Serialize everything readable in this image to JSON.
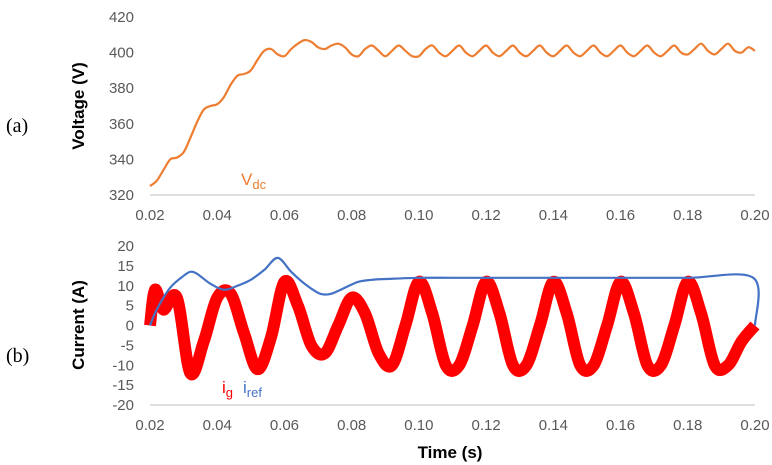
{
  "chart_data": [
    {
      "type": "line",
      "panel_label": "(a)",
      "title": "",
      "xlabel": "",
      "ylabel": "Voltage (V)",
      "xlim": [
        0.02,
        0.2
      ],
      "ylim": [
        320,
        420
      ],
      "xticks": [
        "0.02",
        "0.04",
        "0.06",
        "0.08",
        "0.10",
        "0.12",
        "0.14",
        "0.16",
        "0.18",
        "0.20"
      ],
      "yticks": [
        "320",
        "340",
        "360",
        "380",
        "400",
        "420"
      ],
      "grid": false,
      "series": [
        {
          "name": "Vdc",
          "label_main": "V",
          "label_sub": "dc",
          "color": "#ED7D31",
          "x": [
            0.02,
            0.022,
            0.024,
            0.026,
            0.028,
            0.03,
            0.032,
            0.034,
            0.036,
            0.038,
            0.04,
            0.042,
            0.044,
            0.046,
            0.048,
            0.05,
            0.052,
            0.054,
            0.056,
            0.058,
            0.06,
            0.062,
            0.064,
            0.066,
            0.068,
            0.07,
            0.072,
            0.074,
            0.076,
            0.078,
            0.08,
            0.082,
            0.084,
            0.086,
            0.088,
            0.09,
            0.092,
            0.094,
            0.096,
            0.098,
            0.1,
            0.102,
            0.104,
            0.106,
            0.108,
            0.11,
            0.112,
            0.114,
            0.116,
            0.118,
            0.12,
            0.122,
            0.124,
            0.126,
            0.128,
            0.13,
            0.132,
            0.134,
            0.136,
            0.138,
            0.14,
            0.142,
            0.144,
            0.146,
            0.148,
            0.15,
            0.152,
            0.154,
            0.156,
            0.158,
            0.16,
            0.162,
            0.164,
            0.166,
            0.168,
            0.17,
            0.172,
            0.174,
            0.176,
            0.178,
            0.18,
            0.182,
            0.184,
            0.186,
            0.188,
            0.19,
            0.192,
            0.194,
            0.196,
            0.198,
            0.2
          ],
          "values": [
            325,
            328,
            334,
            340,
            341,
            344,
            352,
            361,
            368,
            370,
            371,
            375,
            382,
            387,
            388,
            390,
            396,
            401,
            402,
            399,
            398,
            402,
            405,
            407,
            406,
            403,
            402,
            404,
            405,
            403,
            399,
            398,
            402,
            404,
            401,
            398,
            401,
            404,
            401,
            398,
            398,
            402,
            404,
            400,
            398,
            401,
            404,
            400,
            398,
            401,
            404,
            400,
            398,
            401,
            404,
            400,
            398,
            401,
            404,
            400,
            398,
            401,
            404,
            400,
            398,
            401,
            404,
            400,
            398,
            401,
            404,
            400,
            398,
            401,
            404,
            400,
            398,
            401,
            404,
            400,
            399,
            402,
            405,
            401,
            399,
            402,
            405,
            401,
            400,
            403,
            401
          ]
        }
      ]
    },
    {
      "type": "line",
      "panel_label": "(b)",
      "title": "",
      "xlabel": "Time (s)",
      "ylabel": "Current (A)",
      "xlim": [
        0.02,
        0.2
      ],
      "ylim": [
        -20,
        20
      ],
      "xticks": [
        "0.02",
        "0.04",
        "0.06",
        "0.08",
        "0.10",
        "0.12",
        "0.14",
        "0.16",
        "0.18",
        "0.20"
      ],
      "yticks": [
        "-20",
        "-15",
        "-10",
        "-5",
        "0",
        "5",
        "10",
        "15",
        "20"
      ],
      "grid": false,
      "series": [
        {
          "name": "ig",
          "label_main": "i",
          "label_sub": "g",
          "color": "#FF0000",
          "frequency_hz": 50,
          "ripple_band_A": 1.5,
          "x": [
            0.02,
            0.0215,
            0.024,
            0.028,
            0.032,
            0.036,
            0.04,
            0.044,
            0.048,
            0.052,
            0.056,
            0.06,
            0.064,
            0.068,
            0.072,
            0.076,
            0.08,
            0.084,
            0.088,
            0.092,
            0.096,
            0.1,
            0.104,
            0.108,
            0.112,
            0.116,
            0.12,
            0.124,
            0.128,
            0.132,
            0.136,
            0.14,
            0.144,
            0.148,
            0.152,
            0.156,
            0.16,
            0.164,
            0.168,
            0.172,
            0.176,
            0.18,
            0.184,
            0.188,
            0.192,
            0.196,
            0.2
          ],
          "values": [
            0,
            9,
            4,
            7,
            -12,
            -4,
            7,
            8,
            -2,
            -11,
            -3,
            11,
            5,
            -5,
            -7,
            0,
            7,
            3,
            -7,
            -10,
            0,
            11,
            3,
            -10,
            -10,
            0,
            11,
            3,
            -10,
            -10,
            0,
            11,
            3,
            -10,
            -10,
            0,
            11,
            3,
            -10,
            -10,
            0,
            11,
            3,
            -10,
            -10,
            -4,
            0
          ]
        },
        {
          "name": "iref",
          "label_main": "i",
          "label_sub": "ref",
          "color": "#4472C4",
          "x": [
            0.02,
            0.022,
            0.026,
            0.03,
            0.032,
            0.034,
            0.038,
            0.042,
            0.046,
            0.05,
            0.054,
            0.058,
            0.062,
            0.066,
            0.07,
            0.072,
            0.074,
            0.078,
            0.082,
            0.086,
            0.09,
            0.1,
            0.11,
            0.12,
            0.14,
            0.16,
            0.18,
            0.1995,
            0.2
          ],
          "values": [
            0,
            4,
            9.5,
            12.5,
            13.5,
            13,
            10.5,
            9,
            10,
            11.5,
            14,
            17,
            13.5,
            10.5,
            8.2,
            7.8,
            8,
            9.5,
            11,
            11.5,
            11.7,
            12,
            12,
            12,
            12,
            12,
            12,
            12,
            0
          ]
        }
      ]
    }
  ]
}
